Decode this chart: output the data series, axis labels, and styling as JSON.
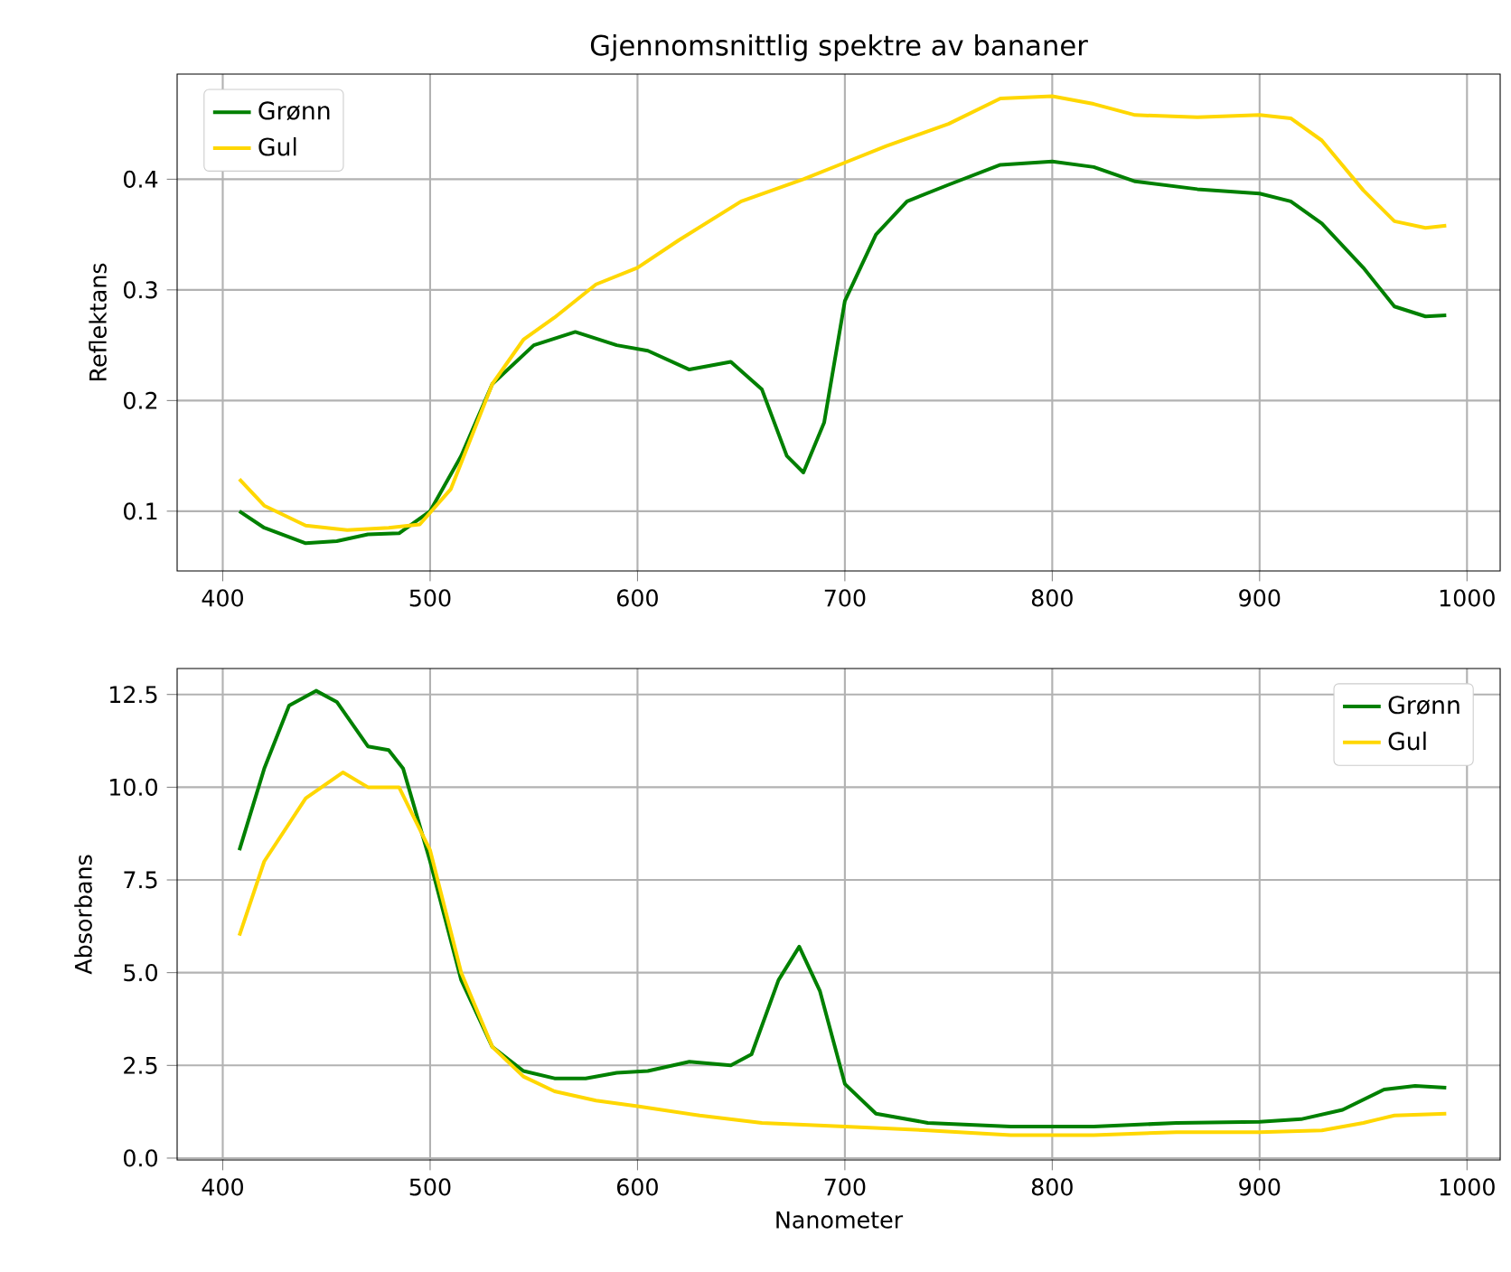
{
  "chart_data": [
    {
      "type": "line",
      "title": "Gjennomsnittlig spektre av bananer",
      "ylabel": "Reflektans",
      "xlim": [
        378,
        1016
      ],
      "ylim": [
        0.046,
        0.495
      ],
      "xticks": [
        400,
        500,
        600,
        700,
        800,
        900,
        1000
      ],
      "yticks": [
        0.1,
        0.2,
        0.3,
        0.4
      ],
      "grid": true,
      "legend": "top left",
      "line_style": "solid",
      "marker": "none",
      "series": [
        {
          "name": "Grønn",
          "color": "#008000",
          "x": [
            408,
            420,
            440,
            455,
            470,
            485,
            500,
            515,
            530,
            550,
            570,
            590,
            605,
            625,
            645,
            660,
            672,
            680,
            690,
            700,
            715,
            730,
            750,
            775,
            800,
            820,
            840,
            870,
            900,
            915,
            930,
            950,
            965,
            980,
            990
          ],
          "values": [
            0.1,
            0.085,
            0.071,
            0.073,
            0.079,
            0.08,
            0.1,
            0.15,
            0.215,
            0.25,
            0.262,
            0.25,
            0.245,
            0.228,
            0.235,
            0.21,
            0.15,
            0.135,
            0.18,
            0.29,
            0.35,
            0.38,
            0.395,
            0.413,
            0.416,
            0.411,
            0.398,
            0.391,
            0.387,
            0.38,
            0.36,
            0.32,
            0.285,
            0.276,
            0.277
          ]
        },
        {
          "name": "Gul",
          "color": "#ffd700",
          "x": [
            408,
            420,
            440,
            460,
            480,
            495,
            510,
            530,
            545,
            560,
            580,
            600,
            620,
            650,
            680,
            700,
            720,
            750,
            775,
            800,
            820,
            840,
            870,
            900,
            915,
            930,
            950,
            965,
            980,
            990
          ],
          "values": [
            0.129,
            0.105,
            0.087,
            0.083,
            0.085,
            0.088,
            0.12,
            0.215,
            0.255,
            0.275,
            0.305,
            0.32,
            0.345,
            0.38,
            0.4,
            0.415,
            0.43,
            0.45,
            0.473,
            0.475,
            0.468,
            0.458,
            0.456,
            0.458,
            0.455,
            0.435,
            0.39,
            0.362,
            0.356,
            0.358
          ]
        }
      ]
    },
    {
      "type": "line",
      "xlabel": "Nanometer",
      "ylabel": "Absorbans",
      "xlim": [
        378,
        1016
      ],
      "ylim": [
        -0.05,
        13.2
      ],
      "xticks": [
        400,
        500,
        600,
        700,
        800,
        900,
        1000
      ],
      "yticks": [
        {
          "value": 0,
          "label": "0.0"
        },
        2.5,
        {
          "value": 5,
          "label": "5.0"
        },
        7.5,
        {
          "value": 10,
          "label": "10.0"
        },
        12.5
      ],
      "grid": true,
      "legend": "top right",
      "line_style": "solid",
      "marker": "none",
      "series": [
        {
          "name": "Grønn",
          "color": "#008000",
          "x": [
            408,
            420,
            432,
            445,
            455,
            470,
            480,
            487,
            500,
            515,
            530,
            545,
            560,
            575,
            590,
            605,
            625,
            645,
            655,
            668,
            678,
            688,
            700,
            715,
            740,
            780,
            820,
            860,
            900,
            920,
            940,
            960,
            975,
            990
          ],
          "values": [
            8.3,
            10.5,
            12.2,
            12.6,
            12.3,
            11.1,
            11.0,
            10.5,
            8.0,
            4.8,
            3.0,
            2.35,
            2.15,
            2.15,
            2.3,
            2.35,
            2.6,
            2.5,
            2.8,
            4.8,
            5.7,
            4.5,
            2.0,
            1.2,
            0.95,
            0.85,
            0.85,
            0.95,
            0.98,
            1.05,
            1.3,
            1.85,
            1.95,
            1.9
          ]
        },
        {
          "name": "Gul",
          "color": "#ffd700",
          "x": [
            408,
            420,
            440,
            458,
            470,
            485,
            500,
            515,
            530,
            545,
            560,
            580,
            600,
            630,
            660,
            700,
            740,
            780,
            820,
            860,
            900,
            930,
            950,
            965,
            990
          ],
          "values": [
            6.0,
            8.0,
            9.7,
            10.4,
            10.0,
            10.0,
            8.3,
            5.0,
            3.0,
            2.2,
            1.8,
            1.55,
            1.4,
            1.15,
            0.95,
            0.85,
            0.75,
            0.62,
            0.62,
            0.7,
            0.7,
            0.75,
            0.95,
            1.15,
            1.2
          ]
        }
      ]
    }
  ]
}
